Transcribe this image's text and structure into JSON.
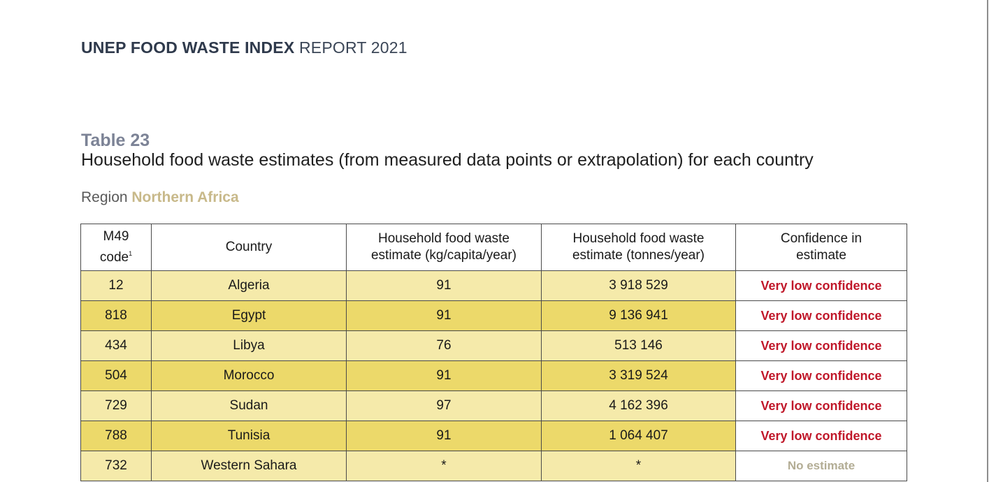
{
  "header": {
    "title_bold": "UNEP FOOD WASTE INDEX",
    "title_rest": " REPORT 2021"
  },
  "table_label": "Table 23",
  "table_caption": "Household food waste estimates (from measured data points or extrapolation) for each country",
  "region": {
    "prefix": "Region ",
    "name": "Northern Africa"
  },
  "columns": {
    "m49_line1": "M49",
    "m49_line2": "code",
    "m49_footnote": "1",
    "country": "Country",
    "kg_line1": "Household food waste",
    "kg_line2": "estimate (kg/capita/year)",
    "tonnes_line1": "Household food waste",
    "tonnes_line2": "estimate (tonnes/year)",
    "confidence_line1": "Confidence in",
    "confidence_line2": "estimate"
  },
  "rows": [
    {
      "code": "12",
      "country": "Algeria",
      "kg": "91",
      "tonnes": "3 918 529",
      "confidence": "Very low confidence"
    },
    {
      "code": "818",
      "country": "Egypt",
      "kg": "91",
      "tonnes": "9 136 941",
      "confidence": "Very low confidence"
    },
    {
      "code": "434",
      "country": "Libya",
      "kg": "76",
      "tonnes": "513 146",
      "confidence": "Very low confidence"
    },
    {
      "code": "504",
      "country": "Morocco",
      "kg": "91",
      "tonnes": "3 319 524",
      "confidence": "Very low confidence"
    },
    {
      "code": "729",
      "country": "Sudan",
      "kg": "97",
      "tonnes": "4 162 396",
      "confidence": "Very low confidence"
    },
    {
      "code": "788",
      "country": "Tunisia",
      "kg": "91",
      "tonnes": "1 064 407",
      "confidence": "Very low confidence"
    },
    {
      "code": "732",
      "country": "Western Sahara",
      "kg": "*",
      "tonnes": "*",
      "confidence": "No estimate"
    }
  ],
  "colors": {
    "row_light": "#f5eaaa",
    "row_dark": "#ecd96a",
    "confidence_text": "#c0182a",
    "no_estimate_text": "#b3ad95",
    "region_name": "#c8b98a",
    "table_label": "#7c8396"
  }
}
